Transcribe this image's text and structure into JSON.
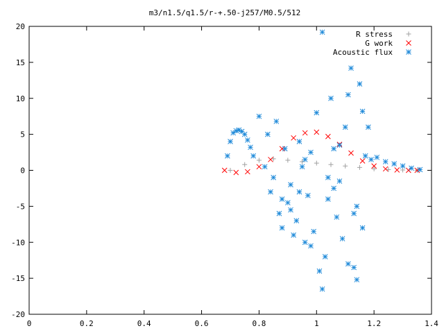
{
  "chart_data": {
    "type": "scatter",
    "title": "m3/n1.5/q1.5/r-+.50-j257/M0.5/512",
    "xlabel": "",
    "ylabel": "",
    "xlim": [
      0,
      1.4
    ],
    "ylim": [
      -20,
      20
    ],
    "x_ticks": [
      "0",
      "0.2",
      "0.4",
      "0.6",
      "0.8",
      "1",
      "1.2",
      "1.4"
    ],
    "y_ticks": [
      "20",
      "15",
      "10",
      "5",
      "0",
      "-5",
      "-10",
      "-15",
      "-20"
    ],
    "grid": false,
    "legend_position": "top-right",
    "series": [
      {
        "name": "R stress",
        "marker": "plus",
        "color": "#a0a0a0",
        "x": [
          0.7,
          0.75,
          0.8,
          0.85,
          0.9,
          0.95,
          1.0,
          1.05,
          1.1,
          1.15,
          1.2,
          1.25,
          1.3,
          1.35
        ],
        "y": [
          0.0,
          0.8,
          1.4,
          1.6,
          1.4,
          1.2,
          1.0,
          0.8,
          0.6,
          0.4,
          0.2,
          0.1,
          0.05,
          0.0
        ]
      },
      {
        "name": "G work",
        "marker": "cross",
        "color": "#ff0000",
        "x": [
          0.68,
          0.72,
          0.76,
          0.8,
          0.84,
          0.88,
          0.92,
          0.96,
          1.0,
          1.04,
          1.08,
          1.12,
          1.16,
          1.2,
          1.24,
          1.28,
          1.32,
          1.35
        ],
        "y": [
          0.0,
          -0.3,
          -0.2,
          0.5,
          1.5,
          3.0,
          4.5,
          5.2,
          5.3,
          4.7,
          3.6,
          2.4,
          1.3,
          0.6,
          0.2,
          0.05,
          0.0,
          0.0
        ]
      },
      {
        "name": "Acoustic flux",
        "marker": "star",
        "color": "#1f8ad9",
        "x": [
          0.69,
          0.7,
          0.71,
          0.72,
          0.73,
          0.74,
          0.75,
          0.76,
          0.77,
          0.78,
          0.8,
          0.83,
          0.84,
          0.86,
          0.87,
          0.88,
          0.89,
          0.9,
          0.91,
          0.92,
          0.93,
          0.94,
          0.95,
          0.96,
          0.97,
          0.98,
          0.99,
          1.0,
          1.01,
          1.02,
          1.03,
          1.04,
          1.05,
          1.06,
          1.07,
          1.08,
          1.09,
          1.1,
          1.11,
          1.12,
          1.13,
          1.14,
          1.15,
          1.16,
          1.17,
          1.18,
          1.19,
          1.21,
          1.24,
          1.27,
          1.3,
          1.33,
          1.36,
          0.85,
          0.91,
          0.94,
          0.98,
          1.02,
          1.06,
          1.11,
          1.14,
          1.16,
          0.82,
          0.88,
          0.96,
          1.04,
          1.08,
          1.13
        ],
        "y": [
          2.0,
          4.0,
          5.2,
          5.5,
          5.6,
          5.4,
          5.0,
          4.2,
          3.2,
          2.0,
          7.5,
          5.0,
          -3.0,
          6.8,
          -6.0,
          -8.0,
          3.0,
          -4.5,
          -2.0,
          -9.0,
          -7.0,
          4.0,
          0.5,
          -10.0,
          -3.5,
          2.5,
          -8.5,
          8.0,
          -14.0,
          19.2,
          -12.0,
          -4.0,
          10.0,
          3.0,
          -6.5,
          -1.5,
          -9.5,
          6.0,
          10.5,
          14.2,
          -13.5,
          -5.0,
          12.0,
          8.2,
          2.0,
          6.0,
          1.5,
          1.8,
          1.2,
          0.9,
          0.6,
          0.3,
          0.1,
          -1.0,
          -5.5,
          -3.0,
          -10.5,
          -16.5,
          -2.5,
          -13.0,
          -15.2,
          -8.0,
          0.5,
          -4.0,
          1.5,
          -1.0,
          3.5,
          -6.0
        ]
      }
    ]
  }
}
